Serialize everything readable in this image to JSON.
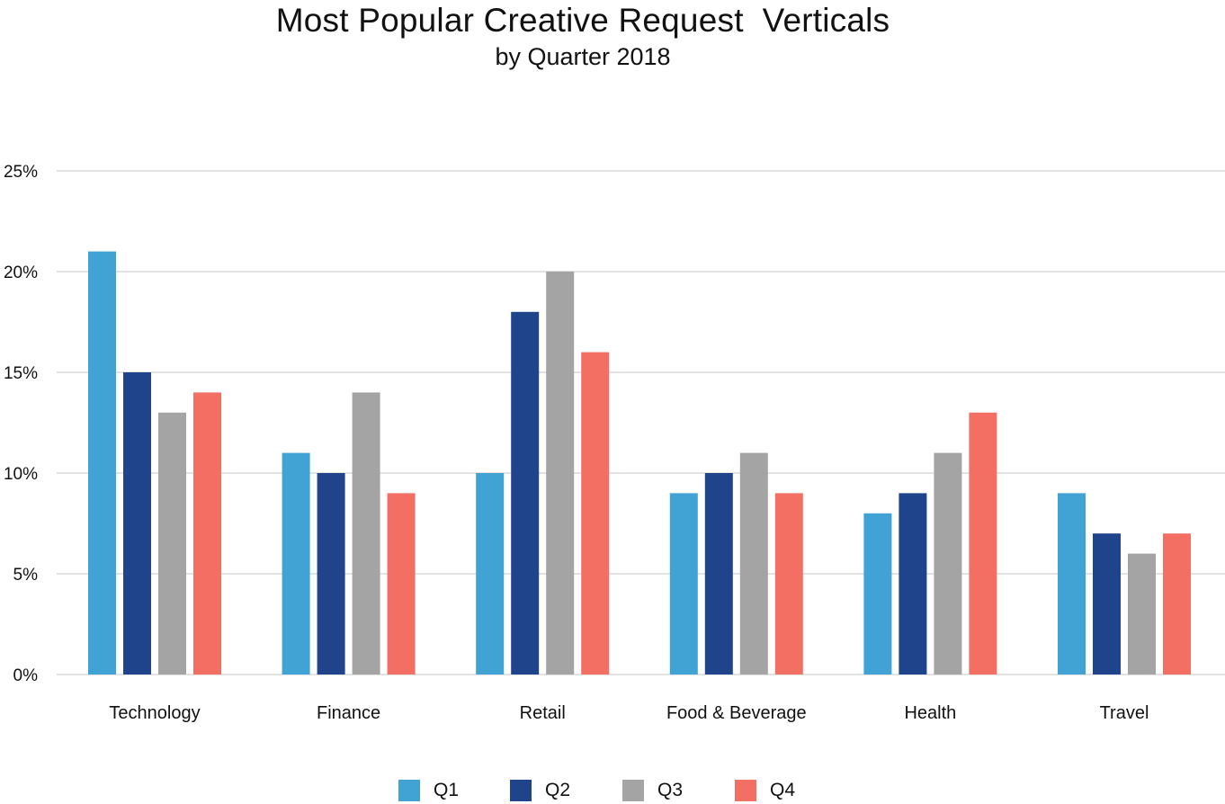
{
  "chart_data": {
    "type": "bar",
    "title": "Most Popular Creative Request  Verticals",
    "subtitle": "by Quarter 2018",
    "xlabel": "",
    "ylabel": "",
    "categories": [
      "Technology",
      "Finance",
      "Retail",
      "Food & Beverage",
      "Health",
      "Travel"
    ],
    "series": [
      {
        "name": "Q1",
        "color": "#41a2d4",
        "values": [
          21,
          11,
          10,
          9,
          8,
          9
        ]
      },
      {
        "name": "Q2",
        "color": "#1f448c",
        "values": [
          15,
          10,
          18,
          10,
          9,
          7
        ]
      },
      {
        "name": "Q3",
        "color": "#a4a4a4",
        "values": [
          13,
          14,
          20,
          11,
          11,
          6
        ]
      },
      {
        "name": "Q4",
        "color": "#f36f64",
        "values": [
          14,
          9,
          16,
          9,
          13,
          7
        ]
      }
    ],
    "ylim": [
      0,
      25
    ],
    "yticks": [
      0,
      5,
      10,
      15,
      20,
      25
    ],
    "ytick_labels": [
      "0%",
      "5%",
      "10%",
      "15%",
      "20%",
      "25%"
    ],
    "grid": true,
    "legend_position": "bottom-center",
    "gridline_color": "#d9d9d9"
  }
}
